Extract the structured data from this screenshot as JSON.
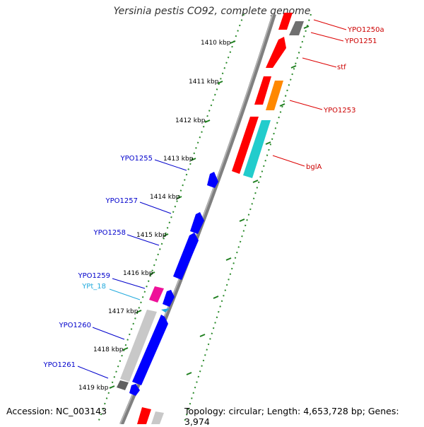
{
  "title": "Yersinia pestis CO92, complete genome",
  "footer": {
    "accession": "Accession: NC_003143",
    "topology": "Topology: circular; Length: 4,653,728 bp; Genes: 3,974"
  },
  "colors": {
    "backbone": "#808080",
    "tick": "#2a8a2a",
    "label_forward": "#cc0000",
    "label_reverse": "#0000cc",
    "label_rna": "#22aadd"
  },
  "ruler_labels": [
    "1410 kbp",
    "1411 kbp",
    "1412 kbp",
    "1413 kbp",
    "1414 kbp",
    "1415 kbp",
    "1416 kbp",
    "1417 kbp",
    "1418 kbp",
    "1419 kbp"
  ],
  "forward_labels": [
    "YPO1250a",
    "YPO1251",
    "stf",
    "YPO1253",
    "bglA"
  ],
  "reverse_labels": [
    "YPO1255",
    "YPO1257",
    "YPO1258",
    "YPO1259",
    "YPt_18",
    "YPO1260",
    "YPO1261"
  ]
}
